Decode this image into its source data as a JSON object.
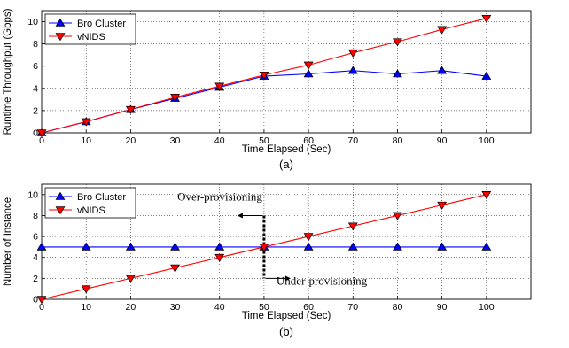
{
  "chart_data": [
    {
      "type": "line",
      "caption": "(a)",
      "xlabel": "Time Elapsed (Sec)",
      "ylabel": "Runtime Throughput (Gbps)",
      "xlim": [
        0,
        110
      ],
      "ylim": [
        0,
        11
      ],
      "xticks": [
        0,
        10,
        20,
        30,
        40,
        50,
        60,
        70,
        80,
        90,
        100
      ],
      "yticks": [
        0,
        2,
        4,
        6,
        8,
        10
      ],
      "grid": "dotted",
      "legend": "top-left",
      "x": [
        0,
        10,
        20,
        30,
        40,
        50,
        60,
        70,
        80,
        90,
        100
      ],
      "series": [
        {
          "name": "Bro Cluster",
          "color": "#0000ff",
          "marker": "triangle-up",
          "values": [
            0,
            1.0,
            2.1,
            3.1,
            4.1,
            5.1,
            5.3,
            5.6,
            5.3,
            5.6,
            5.1
          ]
        },
        {
          "name": "vNIDS",
          "color": "#ff0000",
          "marker": "triangle-down",
          "values": [
            0,
            1.0,
            2.1,
            3.2,
            4.2,
            5.2,
            6.1,
            7.2,
            8.2,
            9.3,
            10.3
          ]
        }
      ]
    },
    {
      "type": "line",
      "caption": "(b)",
      "xlabel": "Time Elapsed (Sec)",
      "ylabel": "Number of Instance",
      "xlim": [
        0,
        110
      ],
      "ylim": [
        0,
        11
      ],
      "xticks": [
        0,
        10,
        20,
        30,
        40,
        50,
        60,
        70,
        80,
        90,
        100
      ],
      "yticks": [
        0,
        2,
        4,
        6,
        8,
        10
      ],
      "grid": "dotted",
      "legend": "top-left",
      "x": [
        0,
        10,
        20,
        30,
        40,
        50,
        60,
        70,
        80,
        90,
        100
      ],
      "series": [
        {
          "name": "Bro Cluster",
          "color": "#0000ff",
          "marker": "triangle-up",
          "values": [
            5,
            5,
            5,
            5,
            5,
            5,
            5,
            5,
            5,
            5,
            5
          ]
        },
        {
          "name": "vNIDS",
          "color": "#ff0000",
          "marker": "triangle-down",
          "values": [
            0,
            1,
            2,
            3,
            4,
            5,
            6,
            7,
            8,
            9,
            10
          ]
        }
      ],
      "annotations": [
        {
          "text": "Over-provisioning",
          "direction": "left",
          "x": 50,
          "y": 8
        },
        {
          "text": "Under-provisioning",
          "direction": "right",
          "x": 50,
          "y": 2
        }
      ],
      "divider_x": 50
    }
  ]
}
